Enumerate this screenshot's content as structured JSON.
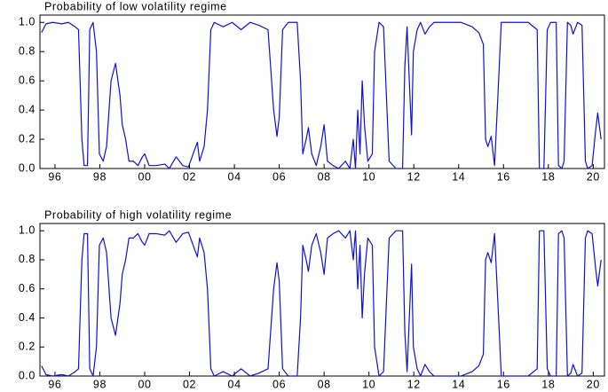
{
  "chart_data": [
    {
      "type": "line",
      "title": "Probability of low volatility regime",
      "color": "#1010d0",
      "x": [
        1995.4,
        1995.6,
        1995.9,
        1996.3,
        1996.6,
        1996.9,
        1997.05,
        1997.2,
        1997.3,
        1997.45,
        1997.55,
        1997.7,
        1997.85,
        1997.98,
        1998.15,
        1998.3,
        1998.5,
        1998.7,
        1998.9,
        1999.0,
        1999.15,
        1999.3,
        1999.5,
        1999.7,
        1999.9,
        2000.0,
        2000.2,
        2000.5,
        2000.9,
        2001.1,
        2001.4,
        2001.7,
        2001.95,
        2002.35,
        2002.45,
        2002.65,
        2002.8,
        2002.95,
        2003.1,
        2003.5,
        2003.9,
        2004.3,
        2004.7,
        2005.1,
        2005.5,
        2005.75,
        2005.9,
        2006.0,
        2006.15,
        2006.4,
        2006.8,
        2006.95,
        2007.05,
        2007.2,
        2007.3,
        2007.45,
        2007.65,
        2007.85,
        2008.0,
        2008.15,
        2008.4,
        2008.65,
        2008.95,
        2009.15,
        2009.3,
        2009.4,
        2009.5,
        2009.6,
        2009.7,
        2009.8,
        2009.95,
        2010.15,
        2010.25,
        2010.45,
        2010.65,
        2010.75,
        2010.9,
        2011.2,
        2011.5,
        2011.6,
        2011.7,
        2011.8,
        2011.9,
        2011.98,
        2012.15,
        2012.3,
        2012.5,
        2012.7,
        2012.9,
        2013.5,
        2014.1,
        2014.6,
        2014.9,
        2015.1,
        2015.2,
        2015.3,
        2015.45,
        2015.6,
        2015.75,
        2015.9,
        2016.5,
        2017.1,
        2017.5,
        2017.6,
        2017.8,
        2017.95,
        2018.1,
        2018.35,
        2018.45,
        2018.6,
        2018.7,
        2018.85,
        2019.0,
        2019.1,
        2019.3,
        2019.5,
        2019.65,
        2019.75,
        2019.95,
        2020.1,
        2020.2,
        2020.35
      ],
      "values": [
        0.93,
        0.99,
        1.0,
        0.99,
        1.0,
        0.97,
        0.95,
        0.2,
        0.02,
        0.02,
        0.95,
        1.0,
        0.8,
        0.1,
        0.05,
        0.15,
        0.6,
        0.72,
        0.5,
        0.3,
        0.2,
        0.05,
        0.05,
        0.02,
        0.08,
        0.1,
        0.02,
        0.02,
        0.03,
        0.0,
        0.08,
        0.02,
        0.01,
        0.18,
        0.05,
        0.15,
        0.4,
        0.95,
        1.0,
        0.97,
        1.0,
        0.95,
        1.0,
        0.98,
        0.95,
        0.4,
        0.22,
        0.35,
        0.95,
        1.0,
        1.0,
        0.6,
        0.1,
        0.2,
        0.28,
        0.1,
        0.02,
        0.15,
        0.3,
        0.05,
        0.02,
        0.0,
        0.05,
        0.0,
        0.2,
        0.0,
        0.4,
        0.1,
        0.6,
        0.3,
        0.05,
        0.1,
        0.8,
        1.0,
        0.97,
        0.6,
        0.05,
        0.0,
        0.0,
        0.7,
        0.97,
        0.6,
        0.23,
        0.8,
        0.95,
        1.0,
        0.92,
        0.97,
        1.0,
        1.0,
        1.0,
        0.97,
        0.93,
        0.85,
        0.2,
        0.15,
        0.22,
        0.02,
        0.5,
        1.0,
        1.0,
        1.0,
        0.95,
        0.0,
        0.0,
        0.95,
        1.0,
        1.0,
        0.02,
        0.0,
        0.05,
        1.0,
        0.98,
        0.92,
        1.0,
        0.98,
        0.05,
        0.0,
        0.02,
        0.25,
        0.38,
        0.2
      ],
      "xlim": [
        1995.33,
        2020.5
      ],
      "xticks": [
        {
          "value": 1996,
          "label": "96"
        },
        {
          "value": 1998,
          "label": "98"
        },
        {
          "value": 2000,
          "label": "00"
        },
        {
          "value": 2002,
          "label": "02"
        },
        {
          "value": 2004,
          "label": "04"
        },
        {
          "value": 2006,
          "label": "06"
        },
        {
          "value": 2008,
          "label": "08"
        },
        {
          "value": 2010,
          "label": "10"
        },
        {
          "value": 2012,
          "label": "12"
        },
        {
          "value": 2014,
          "label": "14"
        },
        {
          "value": 2016,
          "label": "16"
        },
        {
          "value": 2018,
          "label": "18"
        },
        {
          "value": 2020,
          "label": "20"
        }
      ],
      "ylim": [
        0,
        1.05
      ],
      "yticks": [
        {
          "value": 0,
          "label": "0.0"
        },
        0.2,
        0.4,
        0.6,
        0.8,
        {
          "value": 1,
          "label": "1.0"
        }
      ]
    },
    {
      "type": "line",
      "title": "Probability of high volatility regime",
      "color": "#1010d0",
      "x": [
        1995.4,
        1995.6,
        1995.9,
        1996.3,
        1996.6,
        1996.9,
        1997.05,
        1997.2,
        1997.3,
        1997.45,
        1997.55,
        1997.7,
        1997.85,
        1997.98,
        1998.15,
        1998.3,
        1998.5,
        1998.7,
        1998.9,
        1999.0,
        1999.15,
        1999.3,
        1999.5,
        1999.7,
        1999.9,
        2000.0,
        2000.2,
        2000.5,
        2000.9,
        2001.1,
        2001.4,
        2001.7,
        2001.95,
        2002.35,
        2002.45,
        2002.65,
        2002.8,
        2002.95,
        2003.1,
        2003.5,
        2003.9,
        2004.3,
        2004.7,
        2005.1,
        2005.5,
        2005.75,
        2005.9,
        2006.0,
        2006.15,
        2006.4,
        2006.8,
        2006.95,
        2007.05,
        2007.2,
        2007.3,
        2007.45,
        2007.65,
        2007.85,
        2008.0,
        2008.15,
        2008.4,
        2008.65,
        2008.95,
        2009.15,
        2009.3,
        2009.4,
        2009.5,
        2009.6,
        2009.7,
        2009.8,
        2009.95,
        2010.15,
        2010.25,
        2010.45,
        2010.65,
        2010.75,
        2010.9,
        2011.2,
        2011.5,
        2011.6,
        2011.7,
        2011.8,
        2011.9,
        2011.98,
        2012.15,
        2012.3,
        2012.5,
        2012.7,
        2012.9,
        2013.5,
        2014.1,
        2014.6,
        2014.9,
        2015.1,
        2015.2,
        2015.3,
        2015.45,
        2015.6,
        2015.75,
        2015.9,
        2016.5,
        2017.1,
        2017.5,
        2017.6,
        2017.8,
        2017.95,
        2018.1,
        2018.35,
        2018.45,
        2018.6,
        2018.7,
        2018.85,
        2019.0,
        2019.1,
        2019.3,
        2019.5,
        2019.65,
        2019.75,
        2019.95,
        2020.1,
        2020.2,
        2020.35
      ],
      "values": [
        0.07,
        0.01,
        0.0,
        0.01,
        0.0,
        0.03,
        0.05,
        0.8,
        0.98,
        0.98,
        0.05,
        0.0,
        0.2,
        0.9,
        0.95,
        0.85,
        0.4,
        0.28,
        0.5,
        0.7,
        0.8,
        0.95,
        0.95,
        0.98,
        0.92,
        0.9,
        0.98,
        0.98,
        0.97,
        1.0,
        0.92,
        0.98,
        0.99,
        0.82,
        0.95,
        0.85,
        0.6,
        0.05,
        0.0,
        0.03,
        0.0,
        0.05,
        0.0,
        0.02,
        0.05,
        0.6,
        0.78,
        0.65,
        0.05,
        0.0,
        0.0,
        0.4,
        0.9,
        0.8,
        0.72,
        0.9,
        0.98,
        0.85,
        0.7,
        0.95,
        0.98,
        1.0,
        0.95,
        1.0,
        0.8,
        1.0,
        0.6,
        0.9,
        0.4,
        0.7,
        0.95,
        0.9,
        0.2,
        0.0,
        0.03,
        0.4,
        0.95,
        1.0,
        1.0,
        0.3,
        0.03,
        0.4,
        0.77,
        0.2,
        0.05,
        0.0,
        0.08,
        0.03,
        0.0,
        0.0,
        0.0,
        0.03,
        0.07,
        0.15,
        0.8,
        0.85,
        0.78,
        0.98,
        0.5,
        0.0,
        0.0,
        0.0,
        0.05,
        1.0,
        1.0,
        0.05,
        0.0,
        0.0,
        0.98,
        1.0,
        0.95,
        0.0,
        0.02,
        0.08,
        0.0,
        0.02,
        0.95,
        1.0,
        0.98,
        0.75,
        0.62,
        0.8
      ],
      "xlim": [
        1995.33,
        2020.5
      ],
      "xticks": [
        {
          "value": 1996,
          "label": "96"
        },
        {
          "value": 1998,
          "label": "98"
        },
        {
          "value": 2000,
          "label": "00"
        },
        {
          "value": 2002,
          "label": "02"
        },
        {
          "value": 2004,
          "label": "04"
        },
        {
          "value": 2006,
          "label": "06"
        },
        {
          "value": 2008,
          "label": "08"
        },
        {
          "value": 2010,
          "label": "10"
        },
        {
          "value": 2012,
          "label": "12"
        },
        {
          "value": 2014,
          "label": "14"
        },
        {
          "value": 2016,
          "label": "16"
        },
        {
          "value": 2018,
          "label": "18"
        },
        {
          "value": 2020,
          "label": "20"
        }
      ],
      "ylim": [
        0,
        1.05
      ],
      "yticks": [
        {
          "value": 0,
          "label": "0.0"
        },
        0.2,
        0.4,
        0.6,
        0.8,
        {
          "value": 1,
          "label": "1.0"
        }
      ]
    }
  ]
}
